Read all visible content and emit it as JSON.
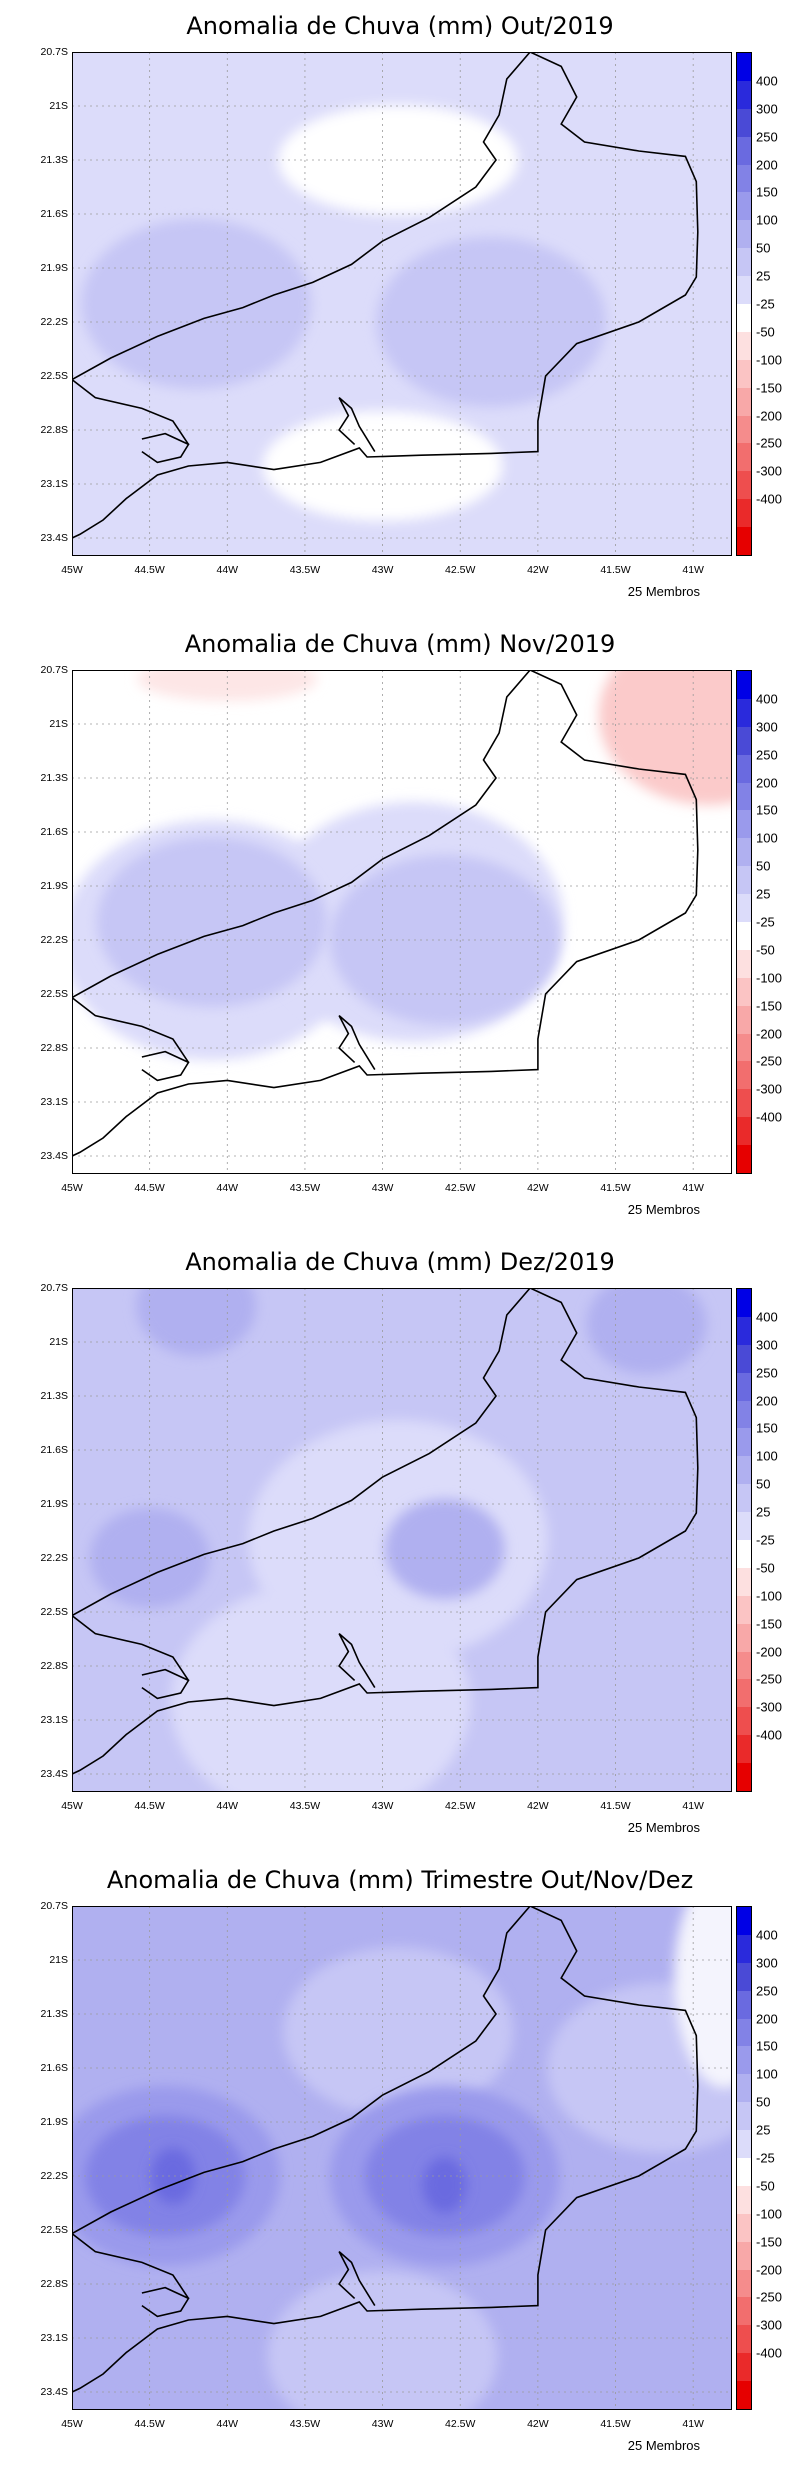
{
  "panels": [
    {
      "title": "Anomalia de Chuva (mm) Out/2019",
      "background": "#dcdcfa",
      "blobs": [
        {
          "lon": -44.2,
          "lat": -22.1,
          "value": 75,
          "color": "#c6c6f5"
        },
        {
          "lon": -42.3,
          "lat": -22.2,
          "value": 75,
          "color": "#c6c6f5"
        },
        {
          "lon": -42.9,
          "lat": -21.3,
          "value": 10,
          "color": "#ffffff"
        },
        {
          "lon": -43.0,
          "lat": -23.0,
          "value": 10,
          "color": "#ffffff"
        }
      ]
    },
    {
      "title": "Anomalia de Chuva (mm) Nov/2019",
      "background": "#ffffff",
      "blobs": [
        {
          "lon": -44.1,
          "lat": -22.2,
          "value": 50,
          "color": "#dcdcfa"
        },
        {
          "lon": -42.8,
          "lat": -22.1,
          "value": 50,
          "color": "#dcdcfa"
        },
        {
          "lon": -44.1,
          "lat": -22.1,
          "value": 75,
          "color": "#c6c6f5"
        },
        {
          "lon": -42.6,
          "lat": -22.2,
          "value": 75,
          "color": "#c6c6f5"
        },
        {
          "lon": -40.9,
          "lat": -20.95,
          "value": -50,
          "color": "#fbcaca"
        },
        {
          "lon": -44.0,
          "lat": -20.75,
          "value": -25,
          "color": "#fde6e6"
        }
      ]
    },
    {
      "title": "Anomalia de Chuva (mm) Dez/2019",
      "background": "#c6c6f5",
      "blobs": [
        {
          "lon": -42.9,
          "lat": -22.1,
          "value": 50,
          "color": "#dcdcfa"
        },
        {
          "lon": -43.4,
          "lat": -23.0,
          "value": 50,
          "color": "#dcdcfa"
        },
        {
          "lon": -44.5,
          "lat": -22.2,
          "value": 100,
          "color": "#b0b0f0"
        },
        {
          "lon": -42.6,
          "lat": -22.15,
          "value": 100,
          "color": "#b0b0f0"
        },
        {
          "lon": -44.2,
          "lat": -20.8,
          "value": 100,
          "color": "#b0b0f0"
        },
        {
          "lon": -41.3,
          "lat": -20.9,
          "value": 100,
          "color": "#b0b0f0"
        }
      ]
    },
    {
      "title": "Anomalia de Chuva (mm) Trimestre Out/Nov/Dez",
      "background": "#b0b0f0",
      "blobs": [
        {
          "lon": -42.9,
          "lat": -21.4,
          "value": 75,
          "color": "#c6c6f5"
        },
        {
          "lon": -41.2,
          "lat": -21.6,
          "value": 75,
          "color": "#c6c6f5"
        },
        {
          "lon": -43.0,
          "lat": -23.2,
          "value": 75,
          "color": "#c6c6f5"
        },
        {
          "lon": -40.8,
          "lat": -21.1,
          "value": 25,
          "color": "#f4f4fd"
        },
        {
          "lon": -44.4,
          "lat": -22.2,
          "value": 150,
          "color": "#9a9aec"
        },
        {
          "lon": -42.6,
          "lat": -22.2,
          "value": 150,
          "color": "#9a9aec"
        },
        {
          "lon": -44.4,
          "lat": -22.2,
          "value": 200,
          "color": "#8282e6"
        },
        {
          "lon": -42.6,
          "lat": -22.2,
          "value": 200,
          "color": "#8282e6"
        },
        {
          "lon": -44.35,
          "lat": -22.2,
          "value": 250,
          "color": "#6a6ae0"
        },
        {
          "lon": -42.6,
          "lat": -22.25,
          "value": 250,
          "color": "#6a6ae0"
        }
      ]
    }
  ],
  "lat_labels": [
    "20.7S",
    "21S",
    "21.3S",
    "21.6S",
    "21.9S",
    "22.2S",
    "22.5S",
    "22.8S",
    "23.1S",
    "23.4S"
  ],
  "lon_labels": [
    "45W",
    "44.5W",
    "44W",
    "43.5W",
    "43W",
    "42.5W",
    "42W",
    "41.5W",
    "41W"
  ],
  "members_label": "25 Membros",
  "colorbar": {
    "labels": [
      "400",
      "300",
      "250",
      "200",
      "150",
      "100",
      "50",
      "25",
      "-25",
      "-50",
      "-100",
      "-150",
      "-200",
      "-250",
      "-300",
      "-400"
    ],
    "colors": [
      "#0000e6",
      "#2a2adc",
      "#4a4ad6",
      "#6a6ae0",
      "#8282e6",
      "#9a9aec",
      "#b0b0f0",
      "#c6c6f5",
      "#dcdcfa",
      "#ffffff",
      "#fde0e0",
      "#fbc4c4",
      "#f8a8a8",
      "#f58c8c",
      "#f26e6e",
      "#ee4e4e",
      "#ea2a2a",
      "#e60000"
    ]
  }
}
